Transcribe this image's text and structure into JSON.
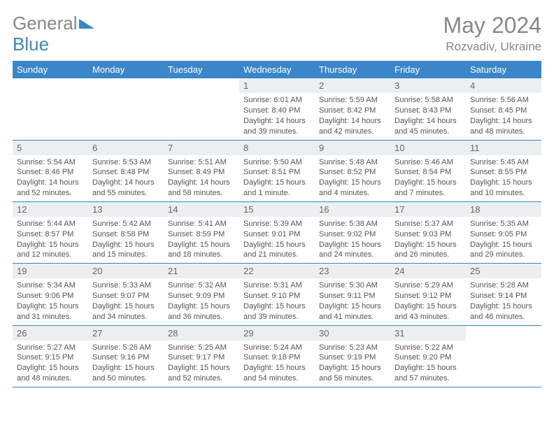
{
  "brand": {
    "part1": "General",
    "part2": "Blue"
  },
  "title": "May 2024",
  "location": "Rozvadiv, Ukraine",
  "colors": {
    "header_bg": "#3a86c8",
    "header_text": "#ffffff",
    "daynum_bg": "#eceff1",
    "border": "#3a86c8",
    "text": "#555555",
    "title_color": "#888888"
  },
  "weekdays": [
    "Sunday",
    "Monday",
    "Tuesday",
    "Wednesday",
    "Thursday",
    "Friday",
    "Saturday"
  ],
  "grid": [
    [
      null,
      null,
      null,
      {
        "n": "1",
        "sr": "6:01 AM",
        "ss": "8:40 PM",
        "dl": "14 hours and 39 minutes."
      },
      {
        "n": "2",
        "sr": "5:59 AM",
        "ss": "8:42 PM",
        "dl": "14 hours and 42 minutes."
      },
      {
        "n": "3",
        "sr": "5:58 AM",
        "ss": "8:43 PM",
        "dl": "14 hours and 45 minutes."
      },
      {
        "n": "4",
        "sr": "5:56 AM",
        "ss": "8:45 PM",
        "dl": "14 hours and 48 minutes."
      }
    ],
    [
      {
        "n": "5",
        "sr": "5:54 AM",
        "ss": "8:46 PM",
        "dl": "14 hours and 52 minutes."
      },
      {
        "n": "6",
        "sr": "5:53 AM",
        "ss": "8:48 PM",
        "dl": "14 hours and 55 minutes."
      },
      {
        "n": "7",
        "sr": "5:51 AM",
        "ss": "8:49 PM",
        "dl": "14 hours and 58 minutes."
      },
      {
        "n": "8",
        "sr": "5:50 AM",
        "ss": "8:51 PM",
        "dl": "15 hours and 1 minute."
      },
      {
        "n": "9",
        "sr": "5:48 AM",
        "ss": "8:52 PM",
        "dl": "15 hours and 4 minutes."
      },
      {
        "n": "10",
        "sr": "5:46 AM",
        "ss": "8:54 PM",
        "dl": "15 hours and 7 minutes."
      },
      {
        "n": "11",
        "sr": "5:45 AM",
        "ss": "8:55 PM",
        "dl": "15 hours and 10 minutes."
      }
    ],
    [
      {
        "n": "12",
        "sr": "5:44 AM",
        "ss": "8:57 PM",
        "dl": "15 hours and 12 minutes."
      },
      {
        "n": "13",
        "sr": "5:42 AM",
        "ss": "8:58 PM",
        "dl": "15 hours and 15 minutes."
      },
      {
        "n": "14",
        "sr": "5:41 AM",
        "ss": "8:59 PM",
        "dl": "15 hours and 18 minutes."
      },
      {
        "n": "15",
        "sr": "5:39 AM",
        "ss": "9:01 PM",
        "dl": "15 hours and 21 minutes."
      },
      {
        "n": "16",
        "sr": "5:38 AM",
        "ss": "9:02 PM",
        "dl": "15 hours and 24 minutes."
      },
      {
        "n": "17",
        "sr": "5:37 AM",
        "ss": "9:03 PM",
        "dl": "15 hours and 26 minutes."
      },
      {
        "n": "18",
        "sr": "5:35 AM",
        "ss": "9:05 PM",
        "dl": "15 hours and 29 minutes."
      }
    ],
    [
      {
        "n": "19",
        "sr": "5:34 AM",
        "ss": "9:06 PM",
        "dl": "15 hours and 31 minutes."
      },
      {
        "n": "20",
        "sr": "5:33 AM",
        "ss": "9:07 PM",
        "dl": "15 hours and 34 minutes."
      },
      {
        "n": "21",
        "sr": "5:32 AM",
        "ss": "9:09 PM",
        "dl": "15 hours and 36 minutes."
      },
      {
        "n": "22",
        "sr": "5:31 AM",
        "ss": "9:10 PM",
        "dl": "15 hours and 39 minutes."
      },
      {
        "n": "23",
        "sr": "5:30 AM",
        "ss": "9:11 PM",
        "dl": "15 hours and 41 minutes."
      },
      {
        "n": "24",
        "sr": "5:29 AM",
        "ss": "9:12 PM",
        "dl": "15 hours and 43 minutes."
      },
      {
        "n": "25",
        "sr": "5:28 AM",
        "ss": "9:14 PM",
        "dl": "15 hours and 46 minutes."
      }
    ],
    [
      {
        "n": "26",
        "sr": "5:27 AM",
        "ss": "9:15 PM",
        "dl": "15 hours and 48 minutes."
      },
      {
        "n": "27",
        "sr": "5:26 AM",
        "ss": "9:16 PM",
        "dl": "15 hours and 50 minutes."
      },
      {
        "n": "28",
        "sr": "5:25 AM",
        "ss": "9:17 PM",
        "dl": "15 hours and 52 minutes."
      },
      {
        "n": "29",
        "sr": "5:24 AM",
        "ss": "9:18 PM",
        "dl": "15 hours and 54 minutes."
      },
      {
        "n": "30",
        "sr": "5:23 AM",
        "ss": "9:19 PM",
        "dl": "15 hours and 56 minutes."
      },
      {
        "n": "31",
        "sr": "5:22 AM",
        "ss": "9:20 PM",
        "dl": "15 hours and 57 minutes."
      },
      null
    ]
  ],
  "labels": {
    "sunrise": "Sunrise:",
    "sunset": "Sunset:",
    "daylight": "Daylight:"
  }
}
